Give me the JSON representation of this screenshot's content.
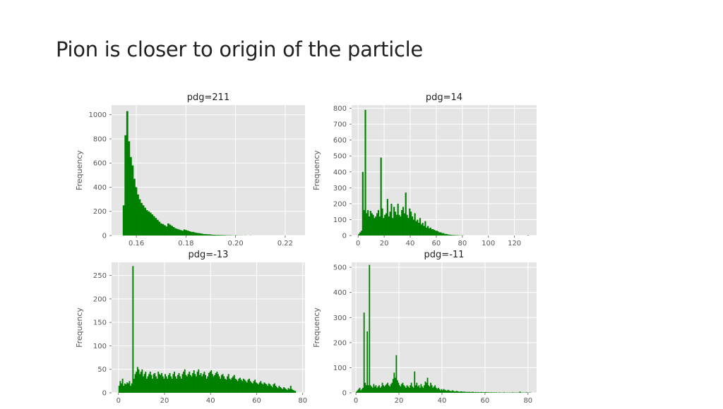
{
  "slide": {
    "title": "Pion is closer to origin of the particle"
  },
  "style": {
    "bar_color": "#008000",
    "panel_bg": "#e5e5e5",
    "grid_color": "#ffffff"
  },
  "chart_data": [
    {
      "type": "bar",
      "title": "pdg=211",
      "ylabel": "Frequency",
      "xlim": [
        0.15,
        0.228
      ],
      "ylim": [
        0,
        1080
      ],
      "xticks": [
        0.16,
        0.18,
        0.2,
        0.22
      ],
      "xtick_labels": [
        "0.16",
        "0.18",
        "0.20",
        "0.22"
      ],
      "yticks": [
        0,
        200,
        400,
        600,
        800,
        1000
      ],
      "bin_start": 0.1545,
      "bin_width": 0.00072,
      "values": [
        250,
        830,
        1030,
        780,
        650,
        580,
        470,
        400,
        340,
        300,
        270,
        250,
        230,
        210,
        200,
        190,
        175,
        160,
        145,
        130,
        115,
        100,
        95,
        85,
        75,
        100,
        90,
        80,
        70,
        60,
        55,
        50,
        45,
        40,
        50,
        45,
        40,
        35,
        30,
        30,
        25,
        22,
        20,
        18,
        15,
        12,
        12,
        10,
        10,
        8,
        6,
        6,
        5,
        5,
        4,
        4,
        3,
        3,
        2,
        2,
        2,
        1,
        1,
        2,
        1,
        1,
        1,
        0,
        1,
        0,
        0,
        1
      ]
    },
    {
      "type": "bar",
      "title": "pdg=14",
      "ylabel": "Frequency",
      "xlim": [
        -5,
        137
      ],
      "ylim": [
        0,
        820
      ],
      "xticks": [
        0,
        20,
        40,
        60,
        80,
        100,
        120
      ],
      "xtick_labels": [
        "0",
        "20",
        "40",
        "60",
        "80",
        "100",
        "120"
      ],
      "yticks": [
        0,
        100,
        200,
        300,
        400,
        500,
        600,
        700,
        800
      ],
      "bin_start": 0,
      "bin_width": 1,
      "values": [
        10,
        20,
        30,
        400,
        160,
        790,
        140,
        160,
        120,
        155,
        140,
        130,
        110,
        120,
        140,
        160,
        120,
        490,
        170,
        110,
        130,
        140,
        230,
        120,
        150,
        200,
        110,
        180,
        150,
        130,
        200,
        130,
        120,
        160,
        180,
        140,
        270,
        130,
        110,
        170,
        150,
        120,
        100,
        140,
        90,
        100,
        80,
        110,
        70,
        80,
        60,
        90,
        50,
        60,
        45,
        50,
        40,
        40,
        35,
        30,
        30,
        25,
        20,
        20,
        15,
        15,
        10,
        10,
        8,
        6,
        5,
        4,
        3,
        3,
        2,
        2,
        2,
        1,
        1,
        1,
        1,
        0,
        0,
        0,
        0,
        0,
        0,
        0,
        0,
        0,
        0,
        0,
        0,
        0,
        0,
        0,
        0,
        0,
        0,
        0,
        0,
        0,
        0,
        0,
        0,
        0,
        0,
        0,
        0,
        0,
        0,
        0,
        0,
        0,
        0,
        0,
        0,
        0,
        0,
        0,
        0,
        0,
        0,
        0,
        0,
        0,
        0,
        0,
        0,
        0,
        2
      ]
    },
    {
      "type": "bar",
      "title": "pdg=-13",
      "ylabel": "Frequency",
      "xlim": [
        -3,
        81
      ],
      "ylim": [
        0,
        278
      ],
      "xticks": [
        0,
        20,
        40,
        60,
        80
      ],
      "xtick_labels": [
        "0",
        "20",
        "40",
        "60",
        "80"
      ],
      "yticks": [
        0,
        50,
        100,
        150,
        200,
        250
      ],
      "bin_start": 0,
      "bin_width": 0.5,
      "values": [
        15,
        25,
        20,
        30,
        15,
        20,
        18,
        22,
        20,
        25,
        15,
        20,
        270,
        30,
        40,
        45,
        55,
        50,
        40,
        45,
        50,
        35,
        40,
        45,
        30,
        35,
        40,
        45,
        38,
        30,
        40,
        42,
        35,
        30,
        45,
        40,
        38,
        42,
        35,
        30,
        40,
        35,
        30,
        38,
        42,
        35,
        30,
        40,
        45,
        35,
        30,
        38,
        42,
        35,
        30,
        40,
        45,
        50,
        38,
        35,
        40,
        45,
        38,
        35,
        42,
        48,
        40,
        35,
        45,
        50,
        38,
        42,
        35,
        40,
        45,
        38,
        30,
        35,
        42,
        45,
        48,
        40,
        35,
        38,
        42,
        45,
        40,
        35,
        30,
        38,
        40,
        35,
        30,
        28,
        35,
        40,
        30,
        28,
        32,
        35,
        38,
        30,
        28,
        25,
        30,
        32,
        28,
        25,
        30,
        28,
        25,
        22,
        28,
        30,
        25,
        22,
        20,
        25,
        28,
        22,
        20,
        18,
        22,
        25,
        20,
        18,
        22,
        20,
        18,
        15,
        20,
        18,
        15,
        12,
        18,
        20,
        15,
        12,
        10,
        15,
        12,
        10,
        8,
        12,
        10,
        8,
        6,
        10,
        8,
        15,
        8,
        6,
        5,
        4
      ]
    },
    {
      "type": "bar",
      "title": "pdg=-11",
      "ylabel": "Frequency",
      "xlim": [
        -2,
        84
      ],
      "ylim": [
        0,
        520
      ],
      "xticks": [
        0,
        20,
        40,
        60,
        80
      ],
      "xtick_labels": [
        "0",
        "20",
        "40",
        "60",
        "80"
      ],
      "yticks": [
        0,
        100,
        200,
        300,
        400,
        500
      ],
      "bin_start": 0,
      "bin_width": 0.5,
      "values": [
        5,
        10,
        15,
        20,
        10,
        15,
        20,
        320,
        40,
        30,
        245,
        30,
        510,
        30,
        25,
        20,
        35,
        25,
        30,
        20,
        25,
        30,
        20,
        25,
        40,
        30,
        25,
        30,
        35,
        40,
        30,
        25,
        35,
        40,
        55,
        80,
        60,
        150,
        50,
        40,
        30,
        25,
        35,
        40,
        30,
        25,
        20,
        30,
        25,
        20,
        30,
        40,
        25,
        20,
        85,
        30,
        40,
        25,
        30,
        20,
        35,
        25,
        20,
        30,
        45,
        40,
        60,
        30,
        25,
        40,
        30,
        20,
        25,
        30,
        20,
        15,
        20,
        15,
        10,
        15,
        10,
        15,
        12,
        10,
        8,
        12,
        10,
        8,
        6,
        10,
        8,
        6,
        5,
        8,
        6,
        5,
        4,
        6,
        5,
        4,
        5,
        4,
        3,
        4,
        3,
        4,
        3,
        3,
        4,
        3,
        2,
        3,
        2,
        3,
        2,
        2,
        3,
        2,
        2,
        2,
        3,
        2,
        2,
        2,
        1,
        2,
        2,
        1,
        2,
        1,
        2,
        1,
        1,
        2,
        1,
        1,
        1,
        2,
        1,
        1,
        1,
        1,
        1,
        1,
        1,
        2,
        1,
        1,
        1,
        1,
        1,
        1,
        5,
        1,
        1,
        1,
        1,
        1,
        2,
        1,
        1,
        1,
        1
      ]
    }
  ]
}
